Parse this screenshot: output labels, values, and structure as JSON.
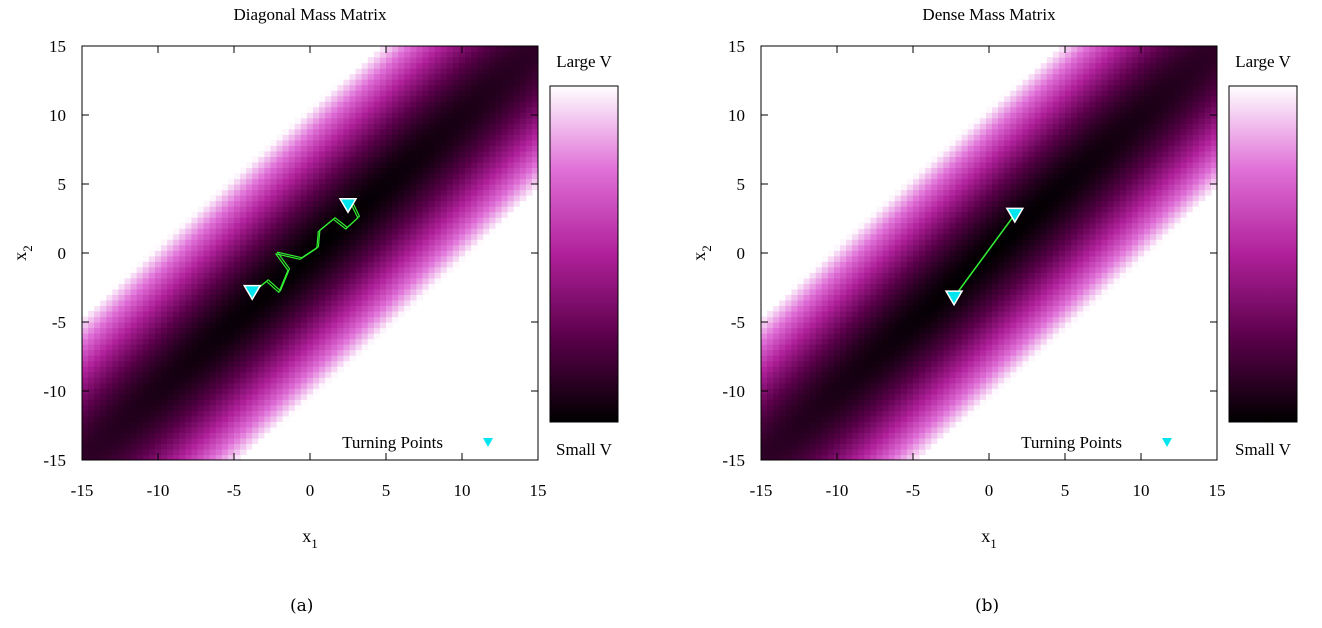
{
  "chart_data": [
    {
      "type": "heatmap",
      "title": "Diagonal Mass Matrix",
      "caption": "(a)",
      "xlabel": "x",
      "xlabel_sub": "1",
      "ylabel": "x",
      "ylabel_sub": "2",
      "xlim": [
        -15,
        15
      ],
      "ylim": [
        -15,
        15
      ],
      "xticks": [
        -15,
        -10,
        -5,
        0,
        5,
        10,
        15
      ],
      "yticks": [
        -15,
        -10,
        -5,
        0,
        5,
        10,
        15
      ],
      "grid": false,
      "colorbar": {
        "top_label": "Large V",
        "bottom_label": "Small V",
        "colors": [
          "#000000",
          "#5a004a",
          "#b0209a",
          "#e070d8",
          "#ffffff"
        ]
      },
      "potential": {
        "form": "gaussian",
        "variance_along": 220,
        "variance_across": 1.8,
        "angle_deg": 45,
        "max_level": 40
      },
      "legend": {
        "label": "Turning Points",
        "position": "bottom-right",
        "marker": "down-triangle",
        "color": "#00e5ee"
      },
      "trajectory": {
        "color": "#33ee33",
        "points": [
          [
            -3.8,
            -2.9
          ],
          [
            -2.8,
            -2.0
          ],
          [
            -2.0,
            -2.8
          ],
          [
            -1.4,
            -1.2
          ],
          [
            -2.2,
            0.0
          ],
          [
            -0.6,
            -0.4
          ],
          [
            0.5,
            0.4
          ],
          [
            0.6,
            1.6
          ],
          [
            1.6,
            2.5
          ],
          [
            2.4,
            1.8
          ],
          [
            3.2,
            2.6
          ],
          [
            2.8,
            3.5
          ],
          [
            2.4,
            3.6
          ]
        ]
      },
      "turning_points": [
        {
          "x": -3.8,
          "y": -2.8
        },
        {
          "x": 2.5,
          "y": 3.5
        }
      ]
    },
    {
      "type": "heatmap",
      "title": "Dense Mass Matrix",
      "caption": "(b)",
      "xlabel": "x",
      "xlabel_sub": "1",
      "ylabel": "x",
      "ylabel_sub": "2",
      "xlim": [
        -15,
        15
      ],
      "ylim": [
        -15,
        15
      ],
      "xticks": [
        -15,
        -10,
        -5,
        0,
        5,
        10,
        15
      ],
      "yticks": [
        -15,
        -10,
        -5,
        0,
        5,
        10,
        15
      ],
      "grid": false,
      "colorbar": {
        "top_label": "Large V",
        "bottom_label": "Small V",
        "colors": [
          "#000000",
          "#5a004a",
          "#b0209a",
          "#e070d8",
          "#ffffff"
        ]
      },
      "potential": {
        "form": "gaussian",
        "variance_along": 220,
        "variance_across": 1.8,
        "angle_deg": 45,
        "max_level": 40
      },
      "legend": {
        "label": "Turning Points",
        "position": "bottom-right",
        "marker": "down-triangle",
        "color": "#00e5ee"
      },
      "trajectory": {
        "color": "#33ee33",
        "points": [
          [
            -2.3,
            -3.2
          ],
          [
            1.7,
            2.8
          ]
        ]
      },
      "turning_points": [
        {
          "x": -2.3,
          "y": -3.2
        },
        {
          "x": 1.7,
          "y": 2.8
        }
      ]
    }
  ]
}
